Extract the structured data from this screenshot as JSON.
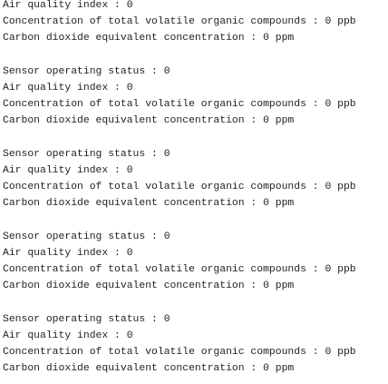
{
  "terminal": {
    "blocks": [
      [
        "Air quality index : 0",
        "Concentration of total volatile organic compounds : 0 ppb",
        "Carbon dioxide equivalent concentration : 0 ppm"
      ],
      [
        "Sensor operating status : 0",
        "Air quality index : 0",
        "Concentration of total volatile organic compounds : 0 ppb",
        "Carbon dioxide equivalent concentration : 0 ppm"
      ],
      [
        "Sensor operating status : 0",
        "Air quality index : 0",
        "Concentration of total volatile organic compounds : 0 ppb",
        "Carbon dioxide equivalent concentration : 0 ppm"
      ],
      [
        "Sensor operating status : 0",
        "Air quality index : 0",
        "Concentration of total volatile organic compounds : 0 ppb",
        "Carbon dioxide equivalent concentration : 0 ppm"
      ],
      [
        "Sensor operating status : 0",
        "Air quality index : 0",
        "Concentration of total volatile organic compounds : 0 ppb",
        "Carbon dioxide equivalent concentration : 0 ppm"
      ]
    ]
  }
}
